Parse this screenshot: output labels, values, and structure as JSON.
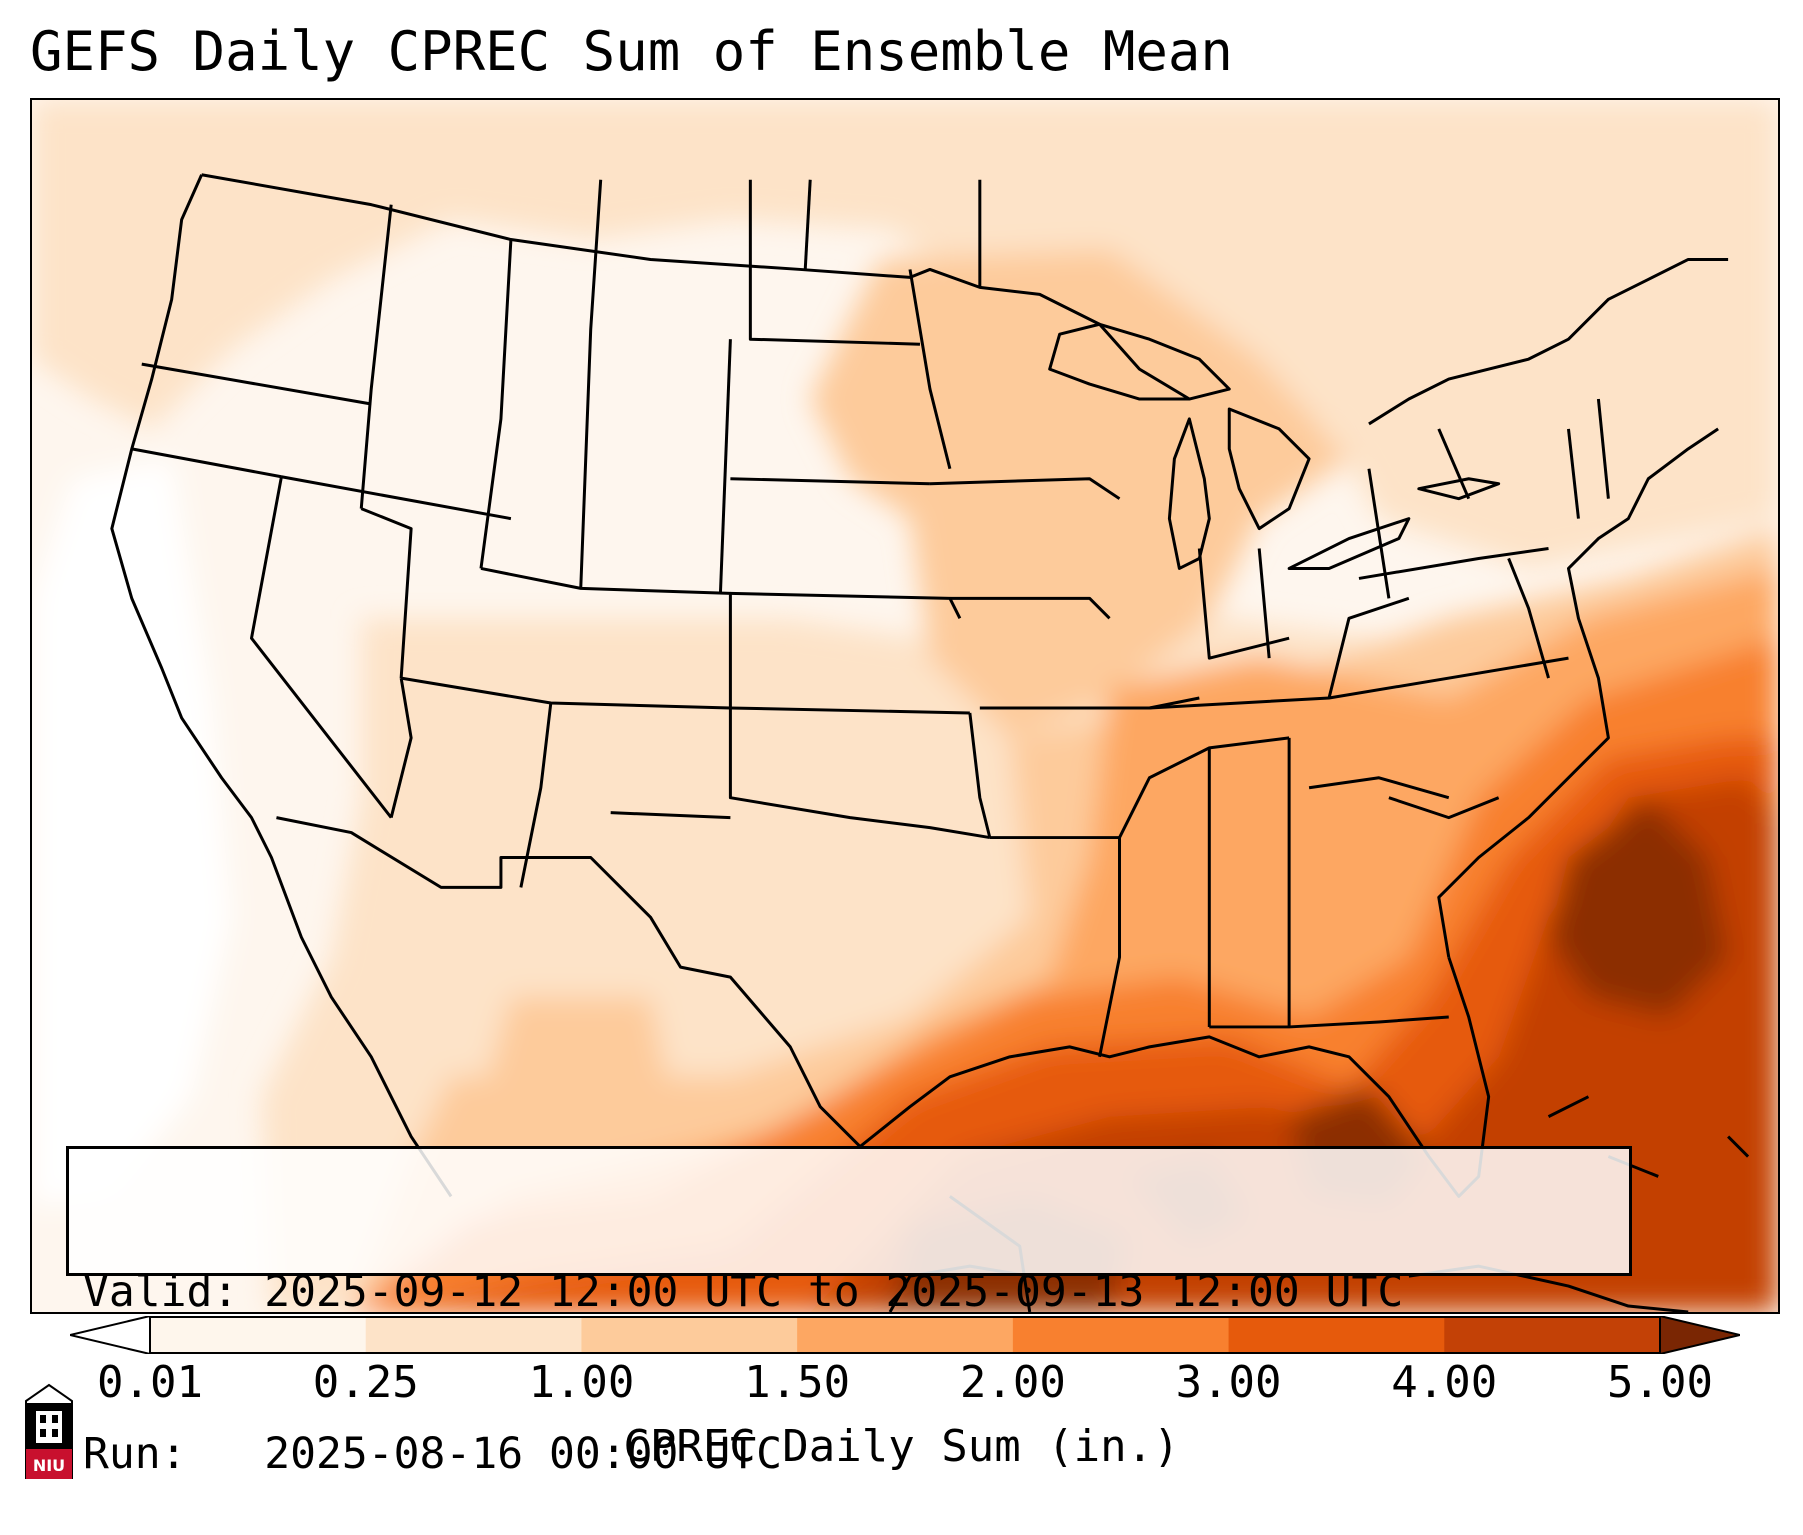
{
  "title": "GEFS Daily CPREC Sum of Ensemble Mean",
  "info": {
    "valid_line": "Valid: 2025-09-12 12:00 UTC to 2025-09-13 12:00 UTC",
    "run_line": "Run:   2025-08-16 00:00 UTC"
  },
  "colorbar": {
    "label": "CPREC Daily Sum (in.)",
    "ticks": [
      "0.01",
      "0.25",
      "1.00",
      "1.50",
      "2.00",
      "3.00",
      "4.00",
      "5.00"
    ],
    "colors": [
      "#fef6ec",
      "#fde3c8",
      "#fdcb9b",
      "#fda762",
      "#f8802f",
      "#e65a0c",
      "#c34106",
      "#8c2d04"
    ],
    "under_color": "#ffffff",
    "over_color": "#7a2603"
  },
  "logo": {
    "name": "niu-logo",
    "text": "NIU",
    "color": "#c8102e"
  },
  "colors": {
    "border": "#000000",
    "ocean_low": "#fef6ee"
  }
}
